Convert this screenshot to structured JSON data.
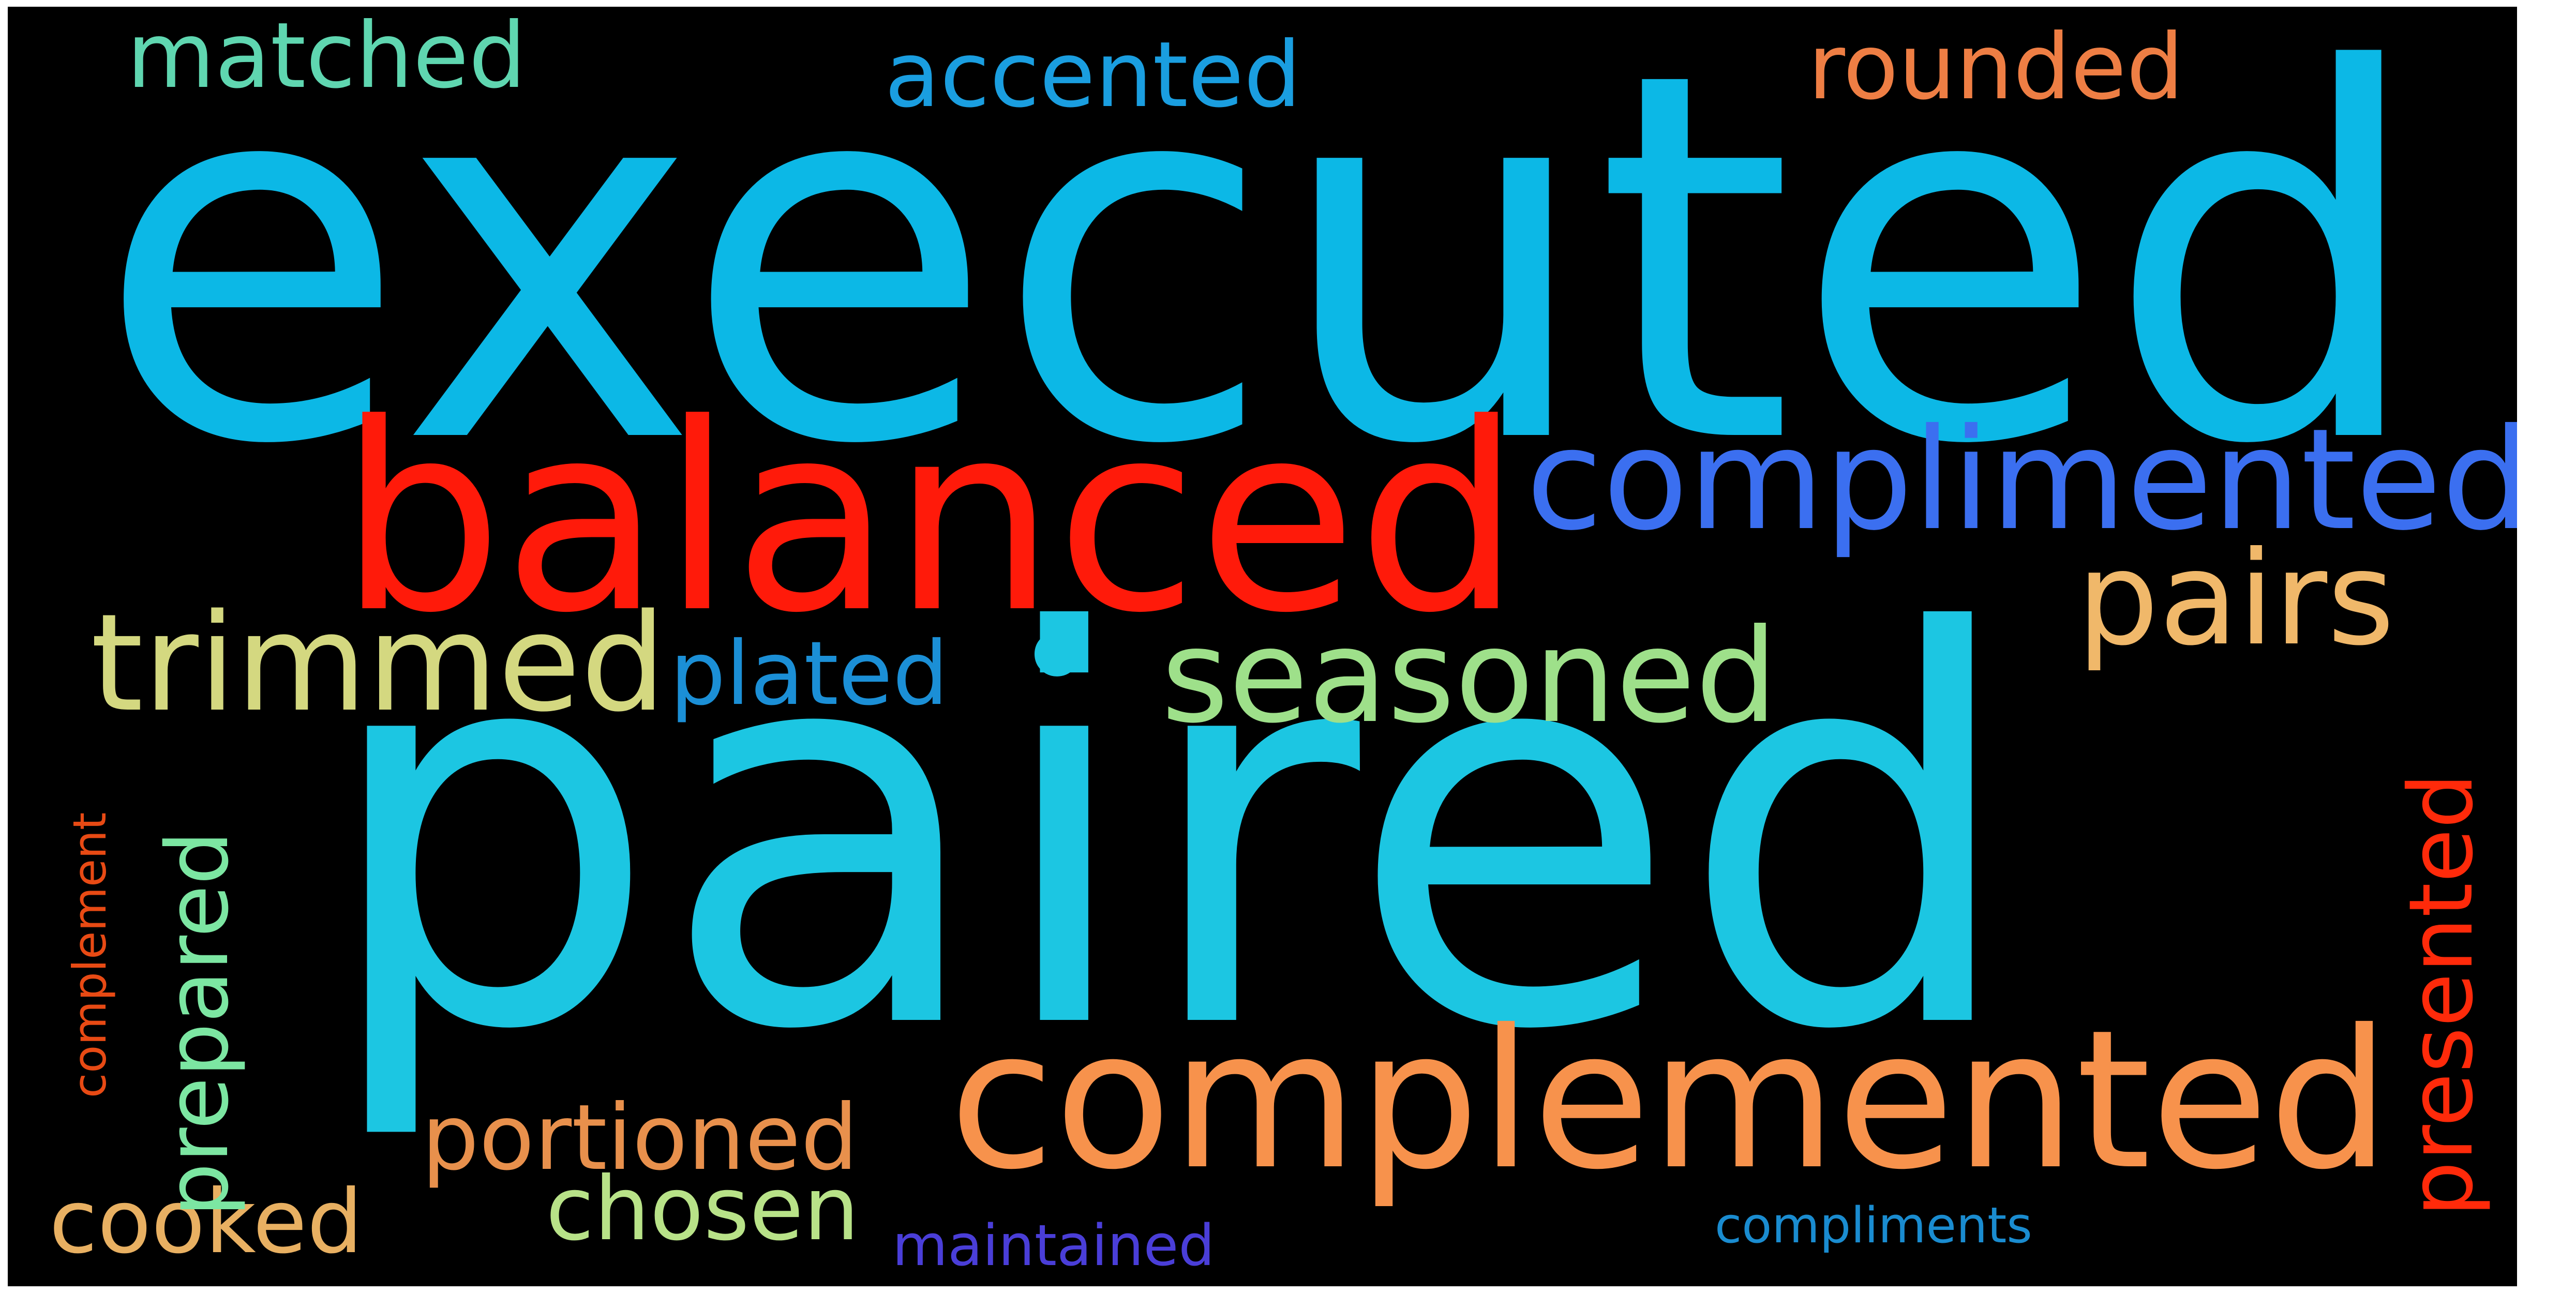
{
  "words": {
    "executed": {
      "text": "executed",
      "color": "#0cb8e6"
    },
    "paired": {
      "text": "paired",
      "color": "#1cc6e2"
    },
    "balanced": {
      "text": "balanced",
      "color": "#ff1a0a"
    },
    "complimented": {
      "text": "complimented",
      "color": "#3b6ff0"
    },
    "complemented": {
      "text": "complemented",
      "color": "#f7924c"
    },
    "pairs": {
      "text": "pairs",
      "color": "#f0b86a"
    },
    "seasoned": {
      "text": "seasoned",
      "color": "#9ee08a"
    },
    "trimmed": {
      "text": "trimmed",
      "color": "#d4d880"
    },
    "plated": {
      "text": "plated",
      "color": "#1b8fd6"
    },
    "dot": {
      "text": "•",
      "color": "#1cc6e2"
    },
    "matched": {
      "text": "matched",
      "color": "#5fd6b0"
    },
    "accented": {
      "text": "accented",
      "color": "#1a9ee0"
    },
    "rounded": {
      "text": "rounded",
      "color": "#ee7e44"
    },
    "portioned": {
      "text": "portioned",
      "color": "#e8904c"
    },
    "chosen": {
      "text": "chosen",
      "color": "#b8e288"
    },
    "cooked": {
      "text": "cooked",
      "color": "#e8b062"
    },
    "maintained": {
      "text": "maintained",
      "color": "#4a3ed8"
    },
    "compliments": {
      "text": "compliments",
      "color": "#1a8cd0"
    },
    "prepared": {
      "text": "prepared",
      "color": "#7ce6a2"
    },
    "presented": {
      "text": "presented",
      "color": "#ff2a0a"
    },
    "complement": {
      "text": "complement",
      "color": "#e84a14"
    }
  }
}
